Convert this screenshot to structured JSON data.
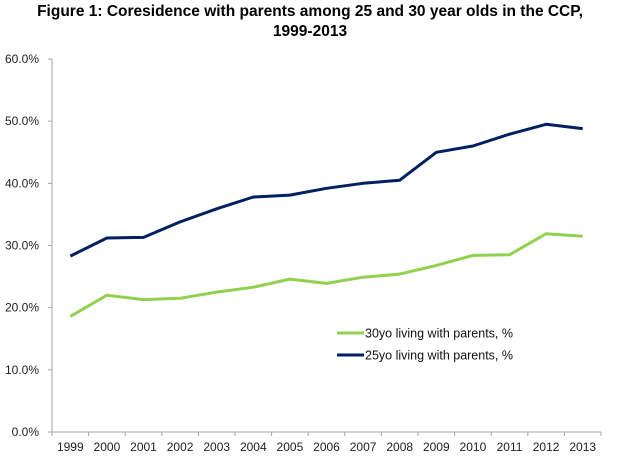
{
  "chart_data": {
    "type": "line",
    "title": "Figure 1: Coresidence with parents among 25 and 30 year olds in the CCP,",
    "title_line2": "1999-2013",
    "xlabel": "",
    "ylabel": "",
    "categories": [
      "1999",
      "2000",
      "2001",
      "2002",
      "2003",
      "2004",
      "2005",
      "2006",
      "2007",
      "2008",
      "2009",
      "2010",
      "2011",
      "2012",
      "2013"
    ],
    "ylim": [
      0,
      60
    ],
    "yticks": [
      0,
      10,
      20,
      30,
      40,
      50,
      60
    ],
    "ytick_labels": [
      "0.0%",
      "10.0%",
      "20.0%",
      "30.0%",
      "40.0%",
      "50.0%",
      "60.0%"
    ],
    "grid": false,
    "legend_position": "lower-right",
    "series": [
      {
        "name": "30yo living with parents, %",
        "color": "#92d050",
        "values": [
          18.6,
          22.0,
          21.3,
          21.5,
          22.5,
          23.3,
          24.6,
          23.9,
          24.9,
          25.4,
          26.8,
          28.4,
          28.5,
          31.9,
          31.5
        ]
      },
      {
        "name": "25yo living with parents, %",
        "color": "#002060",
        "values": [
          28.3,
          31.2,
          31.3,
          33.8,
          35.9,
          37.8,
          38.1,
          39.2,
          40.0,
          40.5,
          45.0,
          46.0,
          47.9,
          49.5,
          48.8
        ]
      }
    ]
  }
}
